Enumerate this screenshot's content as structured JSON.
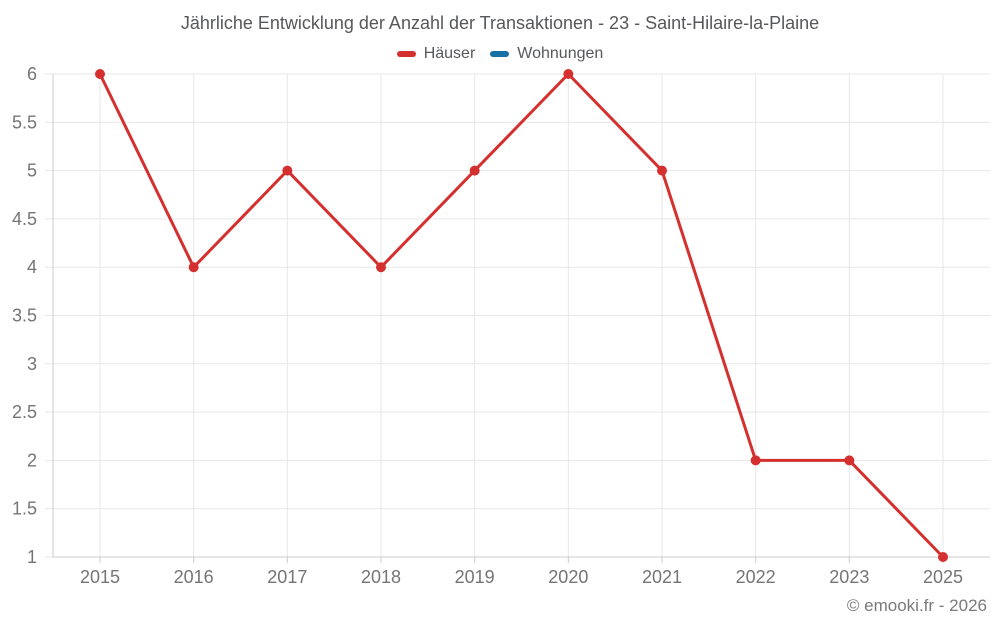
{
  "chart_data": {
    "type": "line",
    "title": "Jährliche Entwicklung der Anzahl der Transaktionen - 23 - Saint-Hilaire-la-Plaine",
    "categories": [
      "2015",
      "2016",
      "2017",
      "2018",
      "2019",
      "2020",
      "2021",
      "2022",
      "2023",
      "2025"
    ],
    "series": [
      {
        "name": "Häuser",
        "color": "#d4302f",
        "values": [
          6,
          4,
          5,
          4,
          5,
          6,
          5,
          2,
          2,
          1
        ]
      },
      {
        "name": "Wohnungen",
        "color": "#1871a5",
        "values": []
      }
    ],
    "xlabel": "",
    "ylabel": "",
    "ylim": [
      1,
      6
    ],
    "ytick_step": 0.5,
    "grid": true,
    "legend_position": "top",
    "grid_color": "#e7e7e7",
    "axis_color": "#cccccc",
    "tick_label_color": "#757575"
  },
  "footer": {
    "copyright": "© emooki.fr - 2026"
  }
}
